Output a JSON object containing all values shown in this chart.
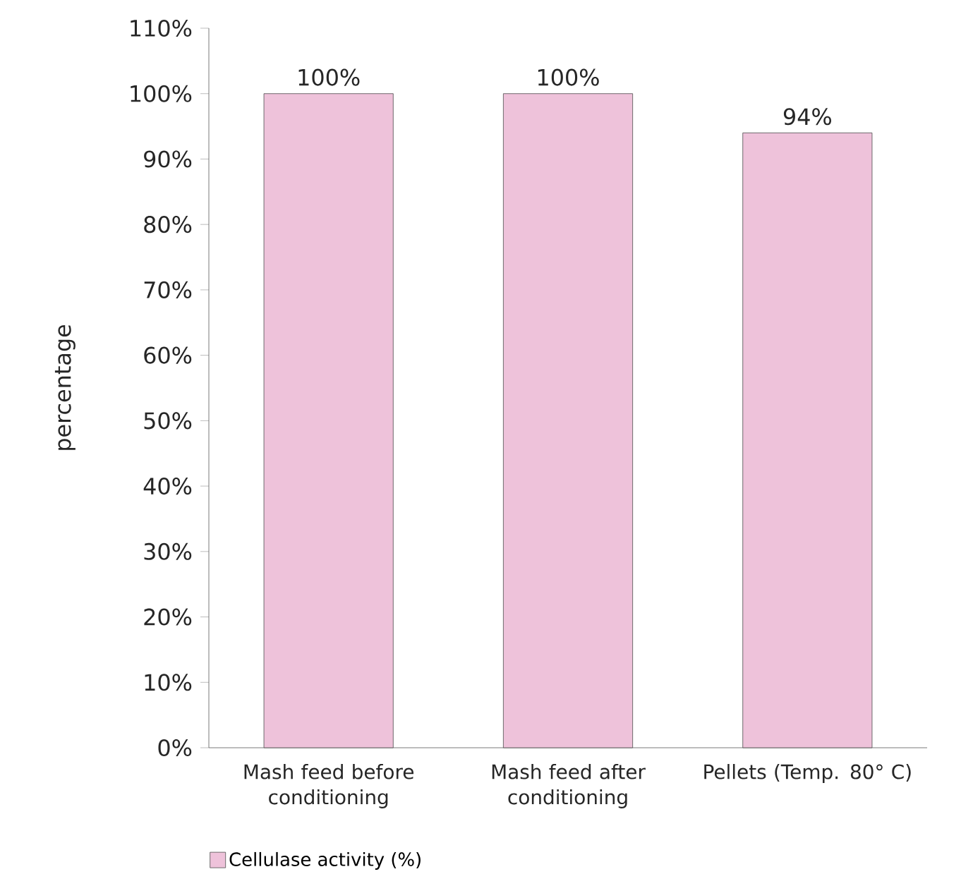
{
  "chart_data": {
    "type": "bar",
    "ylabel": "percentage",
    "categories": [
      "Mash feed before conditioning",
      "Mash feed after conditioning",
      "Pellets (Temp. 80° C)"
    ],
    "series": [
      {
        "name": "Cellulase activity (%)",
        "color": "#eec2da",
        "values": [
          100,
          100,
          94
        ],
        "value_labels": [
          "100%",
          "100%",
          "94%"
        ]
      }
    ],
    "ylim": [
      0,
      110
    ],
    "yticks": [
      {
        "value": 0,
        "label": "0%"
      },
      {
        "value": 10,
        "label": "10%"
      },
      {
        "value": 20,
        "label": "20%"
      },
      {
        "value": 30,
        "label": "30%"
      },
      {
        "value": 40,
        "label": "40%"
      },
      {
        "value": 50,
        "label": "50%"
      },
      {
        "value": 60,
        "label": "60%"
      },
      {
        "value": 70,
        "label": "70%"
      },
      {
        "value": 80,
        "label": "80%"
      },
      {
        "value": 90,
        "label": "90%"
      },
      {
        "value": 100,
        "label": "100%"
      },
      {
        "value": 110,
        "label": "110%"
      }
    ],
    "legend": "bottom left",
    "grid": false
  }
}
